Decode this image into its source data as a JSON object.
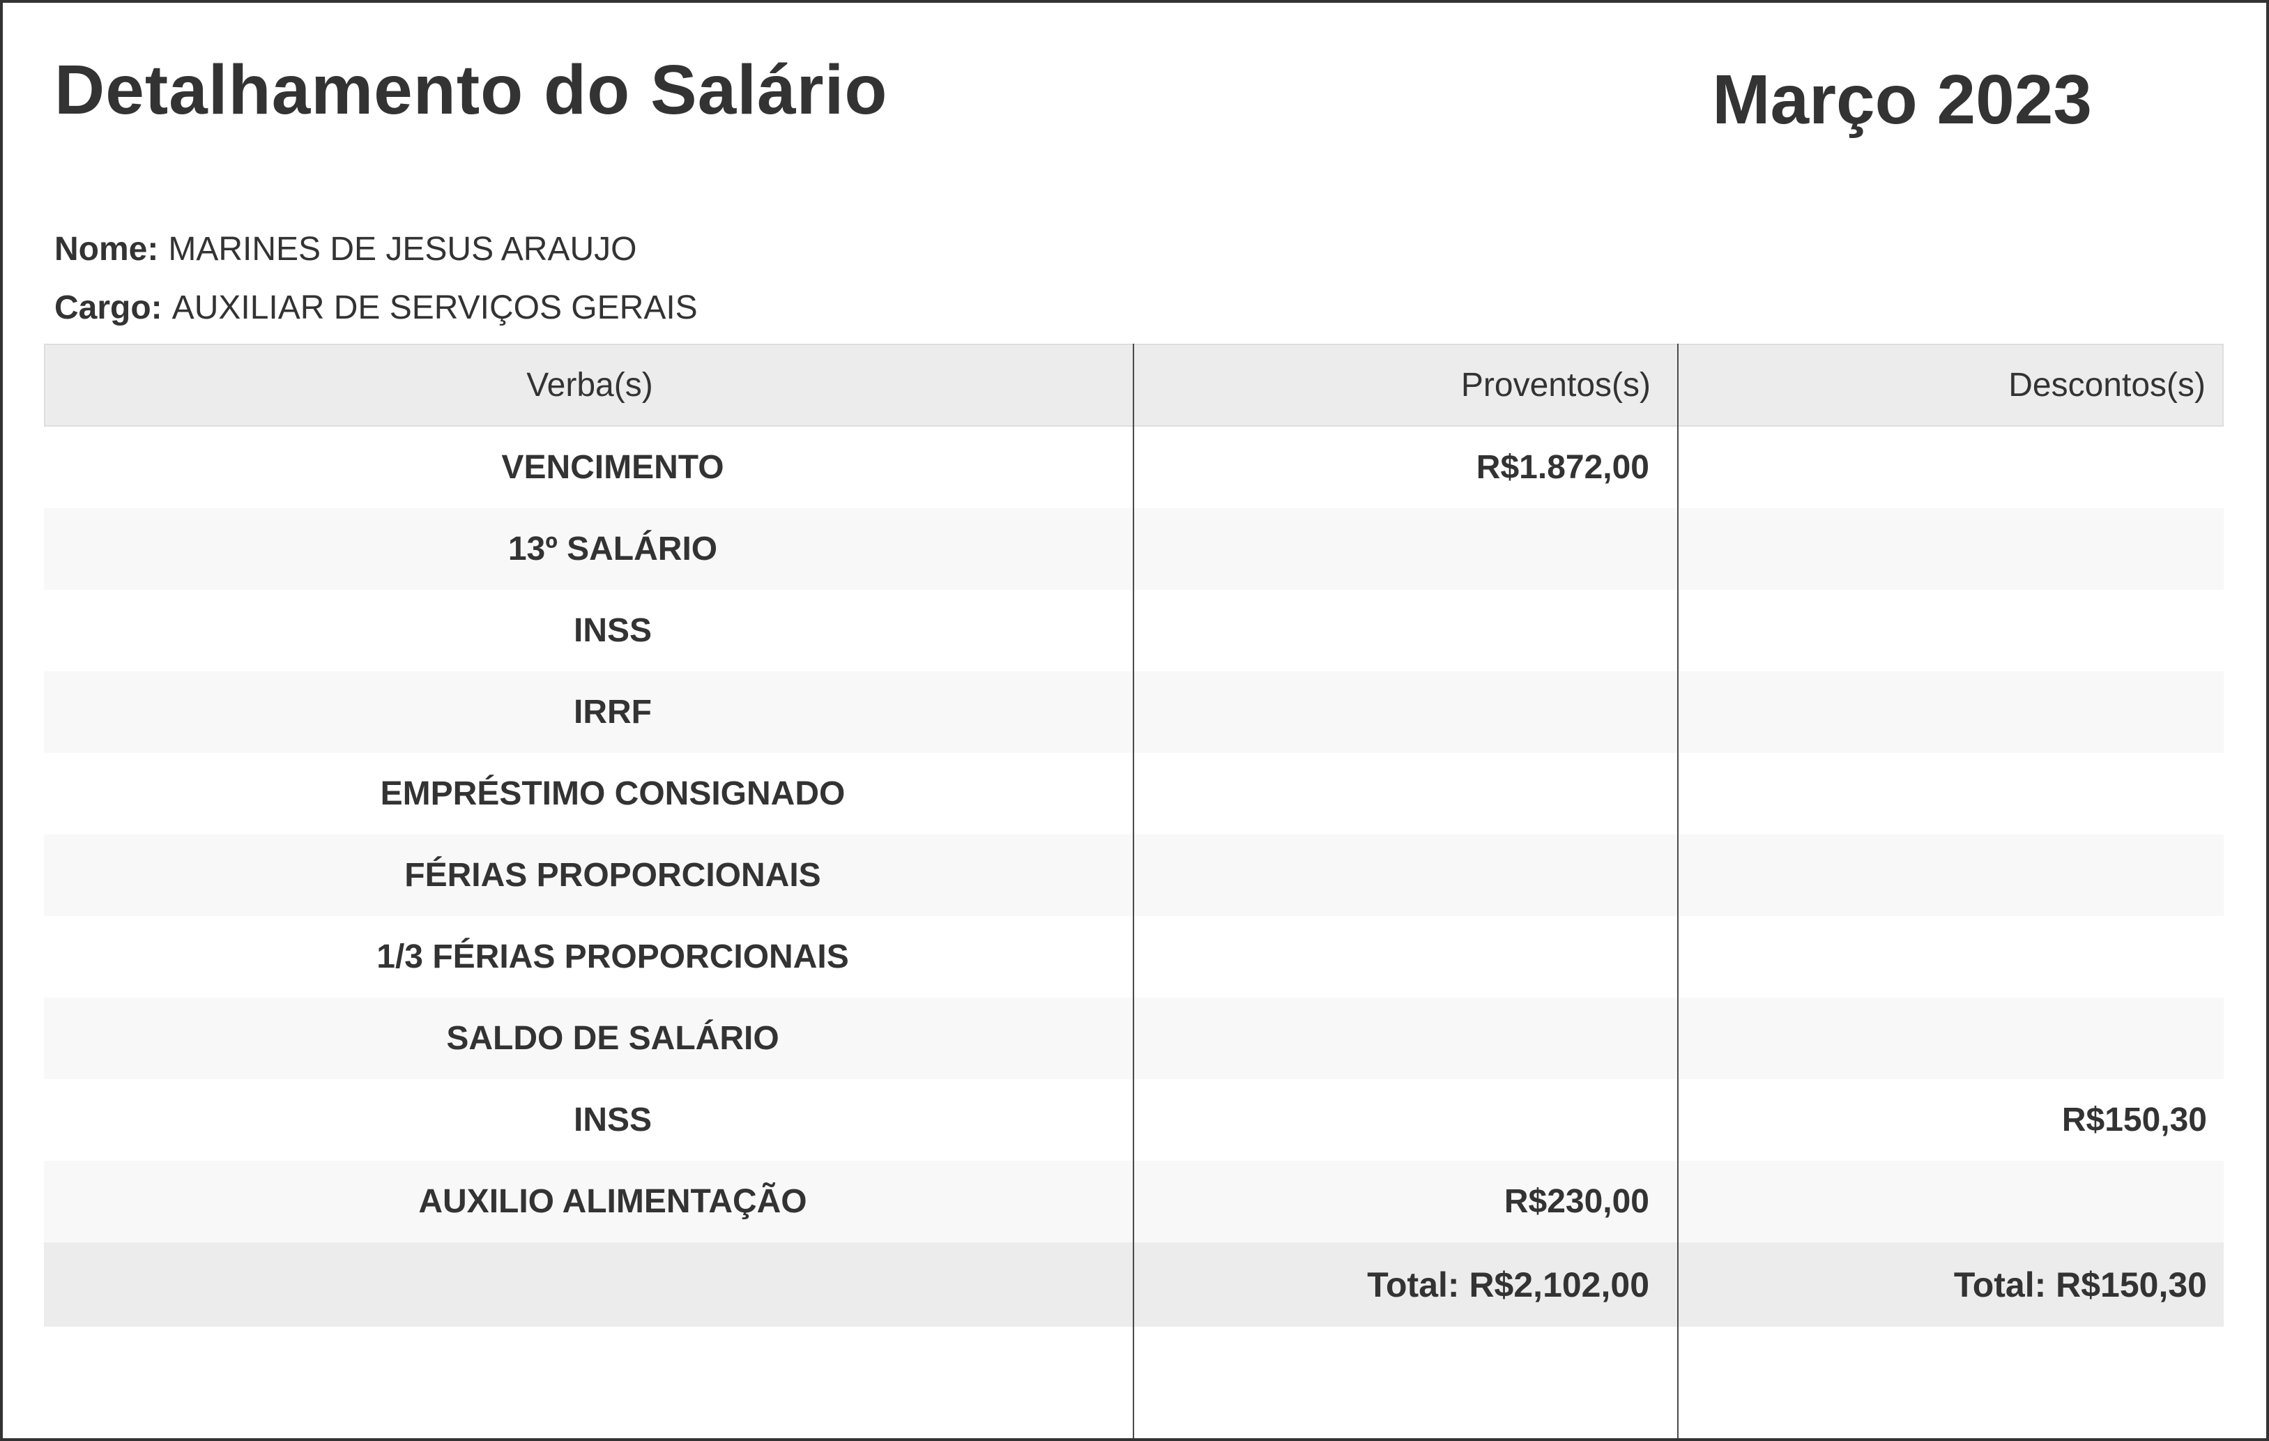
{
  "document": {
    "title": "Detalhamento do Salário",
    "period": "Março 2023"
  },
  "employee": {
    "name_label": "Nome:",
    "name": "MARINES DE JESUS ARAUJO",
    "role_label": "Cargo:",
    "role": "AUXILIAR DE SERVIÇOS GERAIS"
  },
  "table": {
    "headers": {
      "verba": "Verba(s)",
      "proventos": "Proventos(s)",
      "descontos": "Descontos(s)"
    },
    "rows": [
      {
        "verba": "VENCIMENTO",
        "proventos": "R$1.872,00",
        "descontos": ""
      },
      {
        "verba": "13º SALÁRIO",
        "proventos": "",
        "descontos": ""
      },
      {
        "verba": "INSS",
        "proventos": "",
        "descontos": ""
      },
      {
        "verba": "IRRF",
        "proventos": "",
        "descontos": ""
      },
      {
        "verba": "EMPRÉSTIMO CONSIGNADO",
        "proventos": "",
        "descontos": ""
      },
      {
        "verba": "FÉRIAS PROPORCIONAIS",
        "proventos": "",
        "descontos": ""
      },
      {
        "verba": "1/3 FÉRIAS PROPORCIONAIS",
        "proventos": "",
        "descontos": ""
      },
      {
        "verba": "SALDO DE SALÁRIO",
        "proventos": "",
        "descontos": ""
      },
      {
        "verba": "INSS",
        "proventos": "",
        "descontos": "R$150,30"
      },
      {
        "verba": "AUXILIO ALIMENTAÇÃO",
        "proventos": "R$230,00",
        "descontos": ""
      }
    ],
    "totals": {
      "proventos": "Total: R$2,102,00",
      "descontos": "Total: R$150,30"
    }
  },
  "colors": {
    "text": "#333333",
    "page_border": "#333333",
    "header_row_bg": "#ececec",
    "alt_row_bg": "#f8f8f8",
    "total_row_bg": "#ececec",
    "column_divider": "#4a4a4a"
  }
}
